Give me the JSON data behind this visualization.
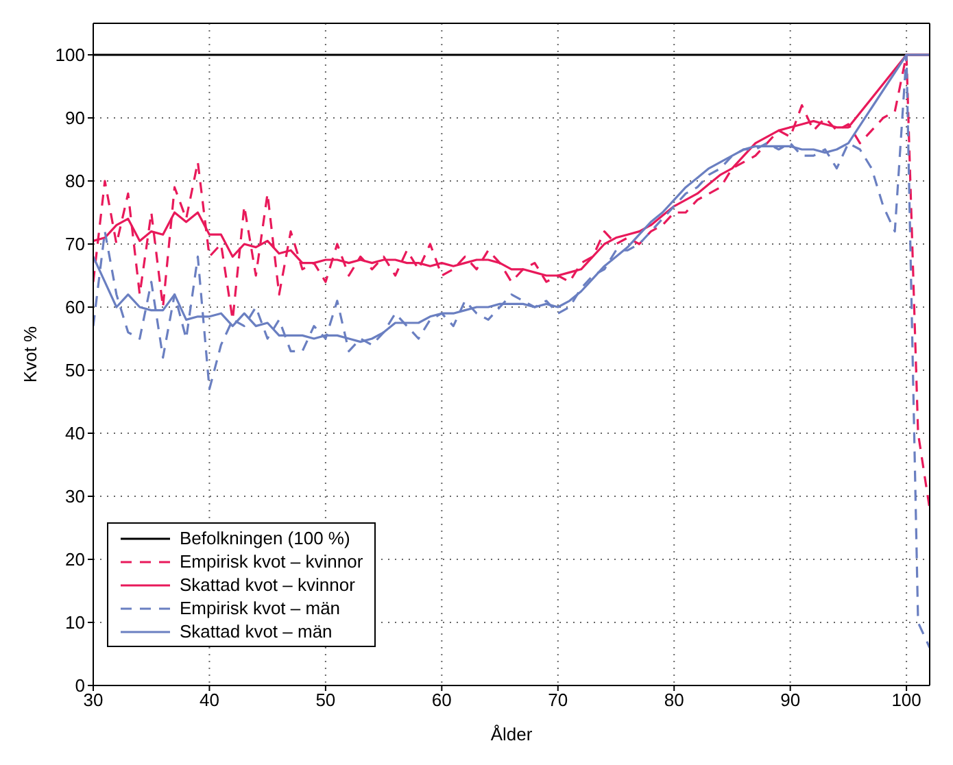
{
  "chart_data": {
    "type": "line",
    "xlabel": "Ålder",
    "ylabel": "Kvot %",
    "x": [
      30,
      31,
      32,
      33,
      34,
      35,
      36,
      37,
      38,
      39,
      40,
      41,
      42,
      43,
      44,
      45,
      46,
      47,
      48,
      49,
      50,
      51,
      52,
      53,
      54,
      55,
      56,
      57,
      58,
      59,
      60,
      61,
      62,
      63,
      64,
      65,
      66,
      67,
      68,
      69,
      70,
      71,
      72,
      73,
      74,
      75,
      76,
      77,
      78,
      79,
      80,
      81,
      82,
      83,
      84,
      85,
      86,
      87,
      88,
      89,
      90,
      91,
      92,
      93,
      94,
      95,
      96,
      97,
      98,
      99,
      100,
      101,
      102
    ],
    "xlim": [
      30,
      102
    ],
    "xticks": [
      30,
      40,
      50,
      60,
      70,
      80,
      90,
      100
    ],
    "ylim": [
      0,
      105
    ],
    "yticks": [
      0,
      10,
      20,
      30,
      40,
      50,
      60,
      70,
      80,
      90,
      100
    ],
    "grid": true,
    "legend": "bottom left",
    "marker": "none",
    "series": [
      {
        "name": "Befolkningen (100 %)",
        "color": "#000000",
        "line_style": "solid",
        "x": [
          30,
          102
        ],
        "values": [
          100,
          100
        ]
      },
      {
        "name": "Empirisk kvot – kvinnor",
        "color": "#e8195a",
        "line_style": "dashed",
        "values": [
          64,
          80,
          70,
          78,
          62,
          75,
          60,
          79,
          74,
          83,
          68,
          70,
          58,
          76,
          65,
          78,
          62,
          72,
          66,
          67,
          64,
          70,
          65,
          68,
          66,
          68,
          65,
          69,
          66,
          70,
          65,
          66,
          68,
          66,
          69,
          67,
          64,
          66,
          67,
          64,
          65,
          64,
          67,
          68,
          72,
          70,
          71,
          70,
          72,
          73,
          75,
          75,
          77,
          78,
          79,
          82,
          83,
          84,
          86,
          88,
          87,
          92,
          88,
          90,
          88,
          89,
          86,
          88,
          90,
          91,
          100,
          40,
          28
        ]
      },
      {
        "name": "Skattad kvot – kvinnor",
        "color": "#e8195a",
        "line_style": "solid",
        "x": [
          30,
          31,
          32,
          33,
          34,
          35,
          36,
          37,
          38,
          39,
          40,
          41,
          42,
          43,
          44,
          45,
          46,
          47,
          48,
          49,
          50,
          51,
          52,
          53,
          54,
          55,
          56,
          57,
          58,
          59,
          60,
          61,
          62,
          63,
          64,
          65,
          66,
          67,
          68,
          69,
          70,
          71,
          72,
          73,
          74,
          75,
          76,
          77,
          78,
          79,
          80,
          81,
          82,
          83,
          84,
          85,
          86,
          87,
          88,
          89,
          90,
          91,
          92,
          93,
          94,
          95,
          100,
          102
        ],
        "values": [
          70.5,
          71,
          73,
          74,
          70.5,
          72,
          71.5,
          75,
          73.5,
          75,
          71.5,
          71.5,
          68,
          70,
          69.5,
          70.5,
          68.5,
          69,
          67,
          67,
          67.5,
          67.5,
          67,
          67.5,
          67,
          67.5,
          67.5,
          67,
          67,
          66.5,
          67,
          66.5,
          67,
          67.5,
          67.5,
          67,
          66,
          66,
          65.5,
          65,
          65,
          65.5,
          66,
          68,
          70,
          71,
          71.5,
          72,
          73,
          74.5,
          76,
          77,
          78,
          79.5,
          81,
          82,
          84,
          86,
          87,
          88,
          88.5,
          89,
          89.5,
          89,
          88.5,
          88.5,
          100,
          100
        ]
      },
      {
        "name": "Empirisk kvot – män",
        "color": "#6a7fc1",
        "line_style": "dashed",
        "values": [
          57,
          72,
          62,
          56,
          55,
          64,
          52,
          62,
          55,
          68,
          47,
          54,
          58,
          57,
          60,
          55,
          58,
          53,
          53,
          57,
          55,
          61,
          53,
          55,
          54,
          56,
          59,
          57,
          55,
          58,
          59,
          57,
          61,
          59,
          58,
          60,
          62,
          61,
          60,
          61,
          59,
          60,
          63,
          65,
          66,
          69,
          69,
          70,
          72,
          74,
          76,
          78,
          79,
          81,
          82,
          84,
          85,
          85,
          86,
          85,
          86,
          84,
          84,
          85,
          82,
          86,
          85,
          82,
          76,
          72,
          100,
          10,
          6
        ]
      },
      {
        "name": "Skattad kvot – män",
        "color": "#6a7fc1",
        "line_style": "solid",
        "x": [
          30,
          31,
          32,
          33,
          34,
          35,
          36,
          37,
          38,
          39,
          40,
          41,
          42,
          43,
          44,
          45,
          46,
          47,
          48,
          49,
          50,
          51,
          52,
          53,
          54,
          55,
          56,
          57,
          58,
          59,
          60,
          61,
          62,
          63,
          64,
          65,
          66,
          67,
          68,
          69,
          70,
          71,
          72,
          73,
          74,
          75,
          76,
          77,
          78,
          79,
          80,
          81,
          82,
          83,
          84,
          85,
          86,
          87,
          88,
          89,
          90,
          91,
          92,
          93,
          94,
          95,
          100,
          102
        ],
        "values": [
          68,
          64,
          60,
          62,
          60,
          59.5,
          59.5,
          62,
          58,
          58.5,
          58.5,
          59,
          57,
          59,
          57,
          57.5,
          55.5,
          55.5,
          55.5,
          55,
          55.5,
          55.5,
          55,
          54.5,
          55,
          56,
          57.5,
          57.5,
          57.5,
          58.5,
          59,
          59,
          59.5,
          60,
          60,
          60.5,
          60.5,
          60.5,
          60,
          60.5,
          60,
          61,
          62.5,
          64.5,
          66.5,
          68,
          69.5,
          71.5,
          73.5,
          75,
          77,
          79,
          80.5,
          82,
          83,
          84,
          85,
          85.5,
          85.5,
          85.5,
          85.5,
          85,
          85,
          84.5,
          85,
          86,
          100,
          100
        ]
      }
    ]
  }
}
